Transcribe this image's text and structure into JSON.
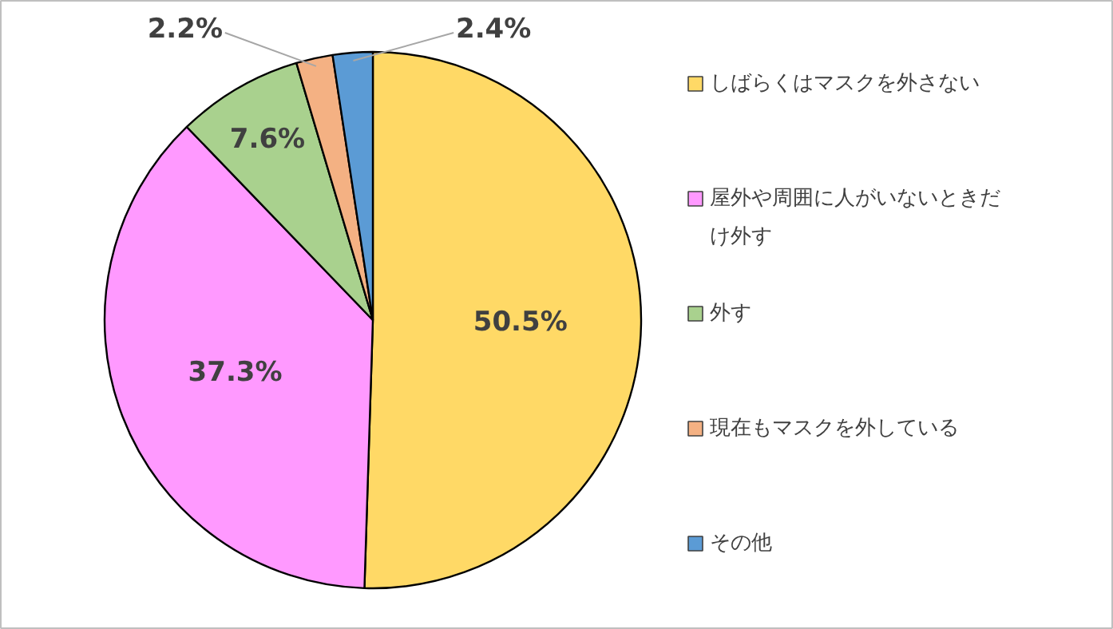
{
  "chart_data": {
    "type": "pie",
    "categories": [
      "しばらくはマスクを外さない",
      "屋外や周囲に人がいないときだけ外す",
      "外す",
      "現在もマスクを外している",
      "その他"
    ],
    "values": [
      50.5,
      37.3,
      7.6,
      2.2,
      2.4
    ],
    "colors": [
      "#ffd966",
      "#ff99ff",
      "#a9d18e",
      "#f4b183",
      "#5b9bd5"
    ],
    "value_labels": [
      "50.5%",
      "37.3%",
      "7.6%",
      "2.2%",
      "2.4%"
    ],
    "legend": "right"
  }
}
